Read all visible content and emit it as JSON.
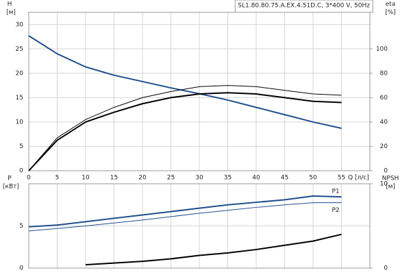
{
  "chart_data": [
    {
      "type": "line",
      "title": "SL1.80.80.75.A.EX.4.51D.C, 3*400 V, 50Hz",
      "ylabel": "H",
      "yunit": "[м]",
      "y2label": "eta",
      "y2unit": "[%]",
      "xlabel": "Q [л/с]",
      "x": [
        0,
        5,
        10,
        15,
        20,
        25,
        30,
        35,
        40,
        45,
        50,
        55
      ],
      "xlim": [
        0,
        60
      ],
      "xticks": [
        0,
        5,
        10,
        15,
        20,
        25,
        30,
        35,
        40,
        45,
        50,
        55
      ],
      "ylim": [
        0,
        32.5
      ],
      "yticks": [
        0,
        5,
        10,
        15,
        20,
        25,
        30
      ],
      "y2lim": [
        0,
        130
      ],
      "y2ticks": [
        0,
        20,
        40,
        60,
        80,
        100
      ],
      "grid": true,
      "series": [
        {
          "color": "#1f4e8c",
          "line_width": 2,
          "values": [
            27.7,
            24,
            21.3,
            19.6,
            18.3,
            17,
            15.8,
            14.5,
            13,
            11.5,
            10,
            8.7
          ]
        },
        {
          "color": "#000000",
          "line_width": 2,
          "axis": "y2",
          "values": [
            0,
            25,
            40,
            48,
            55,
            60,
            63,
            64,
            63,
            60,
            57,
            56
          ]
        },
        {
          "color": "#000000",
          "line_width": 1,
          "axis": "y2",
          "values": [
            0,
            27,
            42,
            52,
            60,
            65,
            69,
            70,
            69,
            66,
            63,
            62
          ]
        }
      ]
    },
    {
      "type": "line",
      "ylabel": "P",
      "yunit": "[кВт]",
      "y2label": "NPSH",
      "y2unit": "[м]",
      "x": [
        0,
        5,
        10,
        15,
        20,
        25,
        30,
        35,
        40,
        45,
        50,
        55
      ],
      "xlim": [
        0,
        60
      ],
      "xticks": [
        0,
        5,
        10,
        15,
        20,
        25,
        30,
        35,
        40,
        45,
        50,
        55
      ],
      "ylim": [
        0,
        10
      ],
      "yticks": [
        0,
        5
      ],
      "y2lim": [
        0,
        10
      ],
      "y2ticks": [
        0,
        10
      ],
      "grid": true,
      "series": [
        {
          "name": "P1",
          "color": "#1f4e8c",
          "line_width": 2,
          "values": [
            4.9,
            5.1,
            5.5,
            5.9,
            6.3,
            6.7,
            7.1,
            7.5,
            7.8,
            8.1,
            8.55,
            8.45
          ]
        },
        {
          "name": "P2",
          "color": "#1f4e8c",
          "line_width": 1,
          "values": [
            4.4,
            4.7,
            5,
            5.35,
            5.7,
            6.1,
            6.5,
            6.85,
            7.2,
            7.5,
            7.75,
            7.75
          ]
        },
        {
          "color": "#000000",
          "line_width": 2,
          "axis": "y2",
          "values": [
            null,
            null,
            0.4,
            0.6,
            0.8,
            1.1,
            1.5,
            1.8,
            2.2,
            2.7,
            3.2,
            4
          ]
        }
      ]
    }
  ]
}
